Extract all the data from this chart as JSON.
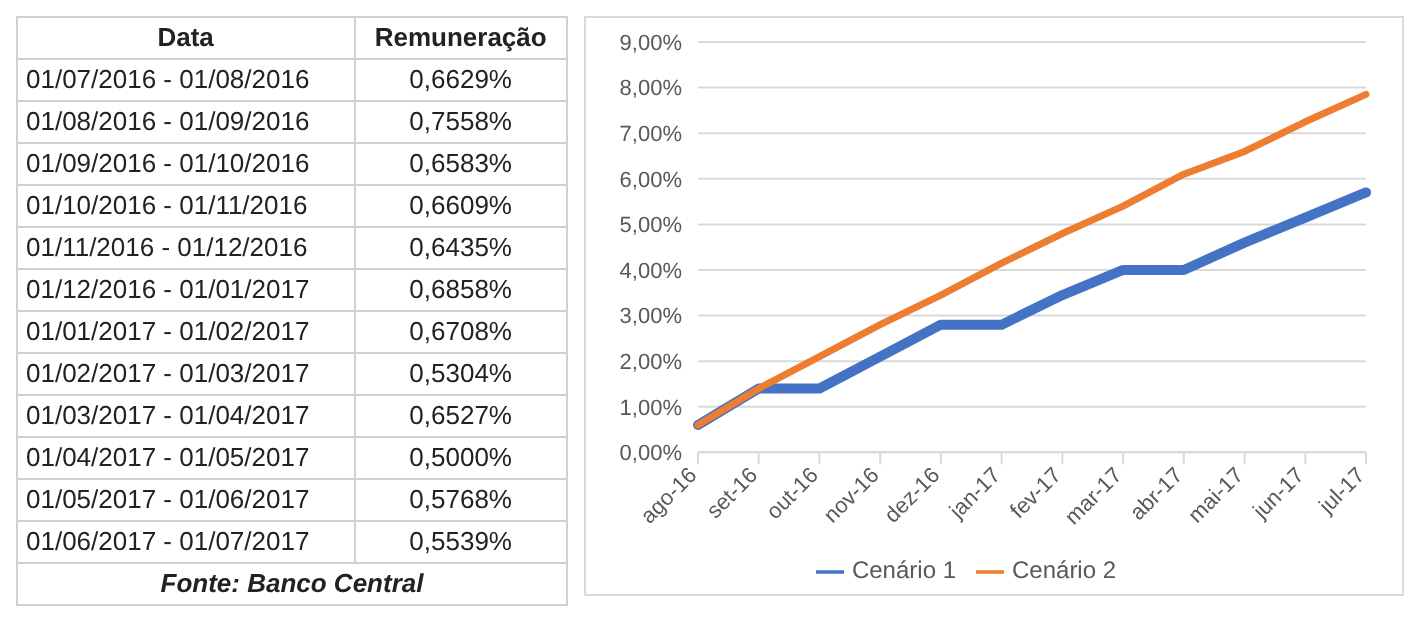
{
  "chart_data": [
    {
      "type": "other",
      "xlabel": "Data",
      "ylabel": "Remuneração",
      "categories": [
        "01/07/2016 - 01/08/2016",
        "01/08/2016 - 01/09/2016",
        "01/09/2016 - 01/10/2016",
        "01/10/2016 - 01/11/2016",
        "01/11/2016 - 01/12/2016",
        "01/12/2016 - 01/01/2017",
        "01/01/2017 - 01/02/2017",
        "01/02/2017 - 01/03/2017",
        "01/03/2017 - 01/04/2017",
        "01/04/2017 - 01/05/2017",
        "01/05/2017 - 01/06/2017",
        "01/06/2017 - 01/07/2017"
      ],
      "value_labels": [
        "0,6629%",
        "0,7558%",
        "0,6583%",
        "0,6609%",
        "0,6435%",
        "0,6858%",
        "0,6708%",
        "0,5304%",
        "0,6527%",
        "0,5000%",
        "0,5768%",
        "0,5539%"
      ],
      "annotations": [
        "Fonte: Banco Central"
      ]
    },
    {
      "type": "line",
      "categories": [
        "ago-16",
        "set-16",
        "out-16",
        "nov-16",
        "dez-16",
        "jan-17",
        "fev-17",
        "mar-17",
        "abr-17",
        "mai-17",
        "jun-17",
        "jul-17"
      ],
      "series": [
        {
          "name": "Cenário 1",
          "color": "#4472c4",
          "values": [
            0.6,
            1.4,
            1.4,
            2.1,
            2.8,
            2.8,
            3.45,
            4.0,
            4.0,
            4.6,
            5.15,
            5.7
          ]
        },
        {
          "name": "Cenário 2",
          "color": "#ed7d31",
          "values": [
            0.6,
            1.4,
            2.1,
            2.8,
            3.45,
            4.15,
            4.8,
            5.4,
            6.1,
            6.6,
            7.25,
            7.85
          ]
        }
      ],
      "ylim": [
        0,
        9
      ],
      "yticks": [
        {
          "value": 0,
          "label": "0,00%"
        },
        {
          "value": 1,
          "label": "1,00%"
        },
        {
          "value": 2,
          "label": "2,00%"
        },
        {
          "value": 3,
          "label": "3,00%"
        },
        {
          "value": 4,
          "label": "4,00%"
        },
        {
          "value": 5,
          "label": "5,00%"
        },
        {
          "value": 6,
          "label": "6,00%"
        },
        {
          "value": 7,
          "label": "7,00%"
        },
        {
          "value": 8,
          "label": "8,00%"
        },
        {
          "value": 9,
          "label": "9,00%"
        }
      ],
      "grid": "y",
      "legend": "bottom",
      "marker": "none",
      "line_style": "solid"
    }
  ]
}
